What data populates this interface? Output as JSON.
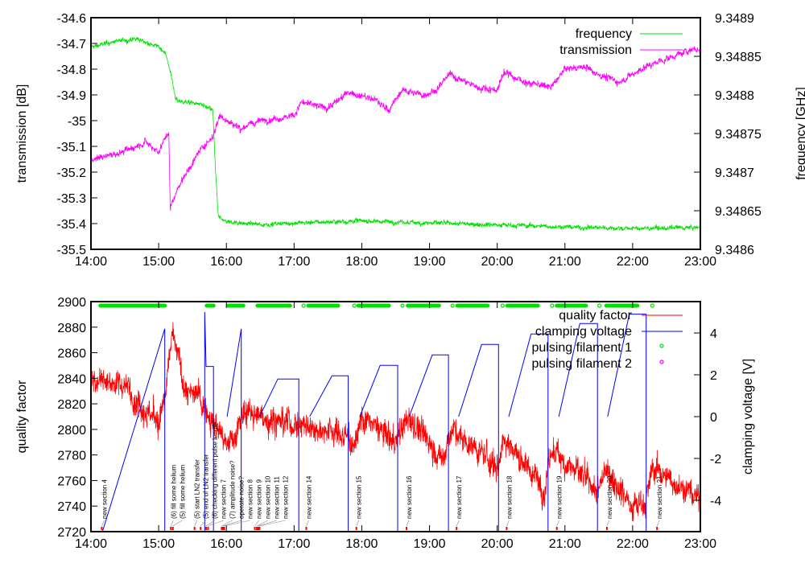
{
  "chart_data": [
    {
      "type": "line",
      "title": "",
      "xlabel": "",
      "ylabel": "transmission [dB]",
      "y2label": "frequency [GHz]",
      "xlim": [
        14,
        23
      ],
      "ylim": [
        -35.5,
        -34.6
      ],
      "y2lim": [
        9.3486,
        9.3489
      ],
      "x_ticks": [
        "14:00",
        "15:00",
        "16:00",
        "17:00",
        "18:00",
        "19:00",
        "20:00",
        "21:00",
        "22:00",
        "23:00"
      ],
      "y_ticks": [
        "-34.6",
        "-34.7",
        "-34.8",
        "-34.9",
        "-35",
        "-35.1",
        "-35.2",
        "-35.3",
        "-35.4",
        "-35.5"
      ],
      "y2_ticks": [
        "9.3489",
        "9.34885",
        "9.3488",
        "9.34875",
        "9.3487",
        "9.34865",
        "9.3486"
      ],
      "legend_position": "top-right",
      "series": [
        {
          "name": "frequency",
          "axis": "y2",
          "color": "#00e000",
          "noise": 4e-06,
          "points": [
            [
              14.0,
              9.348862
            ],
            [
              14.4,
              9.34887
            ],
            [
              14.7,
              9.348872
            ],
            [
              15.0,
              9.348862
            ],
            [
              15.1,
              9.348855
            ],
            [
              15.2,
              9.34882
            ],
            [
              15.25,
              9.348793
            ],
            [
              15.6,
              9.348788
            ],
            [
              15.8,
              9.34878
            ],
            [
              15.84,
              9.3487
            ],
            [
              15.88,
              9.348642
            ],
            [
              16.0,
              9.348636
            ],
            [
              16.5,
              9.348632
            ],
            [
              17.0,
              9.348634
            ],
            [
              18.0,
              9.348637
            ],
            [
              19.0,
              9.348634
            ],
            [
              20.0,
              9.348632
            ],
            [
              21.0,
              9.348629
            ],
            [
              22.0,
              9.348627
            ],
            [
              23.0,
              9.348628
            ]
          ]
        },
        {
          "name": "transmission",
          "axis": "y",
          "color": "#ff00ff",
          "noise": 0.018,
          "points": [
            [
              14.0,
              -35.15
            ],
            [
              14.5,
              -35.12
            ],
            [
              14.8,
              -35.08
            ],
            [
              15.0,
              -35.12
            ],
            [
              15.15,
              -35.04
            ],
            [
              15.17,
              -35.34
            ],
            [
              15.3,
              -35.25
            ],
            [
              15.6,
              -35.12
            ],
            [
              15.8,
              -35.06
            ],
            [
              15.9,
              -34.98
            ],
            [
              16.2,
              -35.03
            ],
            [
              16.5,
              -35.0
            ],
            [
              17.0,
              -34.98
            ],
            [
              17.1,
              -34.93
            ],
            [
              17.5,
              -34.95
            ],
            [
              17.8,
              -34.89
            ],
            [
              18.2,
              -34.92
            ],
            [
              18.4,
              -34.96
            ],
            [
              18.6,
              -34.88
            ],
            [
              18.9,
              -34.9
            ],
            [
              19.1,
              -34.88
            ],
            [
              19.3,
              -34.82
            ],
            [
              19.7,
              -34.87
            ],
            [
              20.0,
              -34.88
            ],
            [
              20.1,
              -34.81
            ],
            [
              20.4,
              -34.85
            ],
            [
              20.8,
              -34.87
            ],
            [
              21.0,
              -34.8
            ],
            [
              21.3,
              -34.79
            ],
            [
              21.5,
              -34.82
            ],
            [
              21.8,
              -34.85
            ],
            [
              22.2,
              -34.79
            ],
            [
              22.5,
              -34.76
            ],
            [
              22.9,
              -34.72
            ],
            [
              23.0,
              -34.73
            ]
          ]
        }
      ]
    },
    {
      "type": "line",
      "title": "",
      "xlabel": "",
      "ylabel": "quality factor",
      "y2label": "clamping voltage [V]",
      "xlim": [
        14,
        23
      ],
      "ylim": [
        2720,
        2900
      ],
      "y2lim": [
        -5.5,
        5.5
      ],
      "x_ticks": [
        "14:00",
        "15:00",
        "16:00",
        "17:00",
        "18:00",
        "19:00",
        "20:00",
        "21:00",
        "22:00",
        "23:00"
      ],
      "y_ticks": [
        "2900",
        "2880",
        "2860",
        "2840",
        "2820",
        "2800",
        "2780",
        "2760",
        "2740",
        "2720"
      ],
      "y2_ticks": [
        "4",
        "2",
        "0",
        "-2",
        "-4"
      ],
      "legend_position": "top-right",
      "quality_factor": {
        "name": "quality factor",
        "color": "#ff0000",
        "noise": 14,
        "points": [
          [
            14.0,
            2840
          ],
          [
            14.5,
            2835
          ],
          [
            15.0,
            2805
          ],
          [
            15.1,
            2825
          ],
          [
            15.2,
            2875
          ],
          [
            15.4,
            2830
          ],
          [
            15.6,
            2825
          ],
          [
            15.9,
            2800
          ],
          [
            16.0,
            2785
          ],
          [
            16.3,
            2815
          ],
          [
            16.5,
            2810
          ],
          [
            17.0,
            2805
          ],
          [
            17.5,
            2800
          ],
          [
            17.9,
            2790
          ],
          [
            18.0,
            2810
          ],
          [
            18.5,
            2790
          ],
          [
            18.7,
            2810
          ],
          [
            19.0,
            2790
          ],
          [
            19.2,
            2775
          ],
          [
            19.3,
            2800
          ],
          [
            19.8,
            2780
          ],
          [
            20.0,
            2770
          ],
          [
            20.1,
            2795
          ],
          [
            20.6,
            2760
          ],
          [
            20.7,
            2752
          ],
          [
            20.8,
            2785
          ],
          [
            21.2,
            2765
          ],
          [
            21.5,
            2750
          ],
          [
            21.6,
            2770
          ],
          [
            22.0,
            2740
          ],
          [
            22.2,
            2745
          ],
          [
            22.3,
            2770
          ],
          [
            23.0,
            2745
          ]
        ]
      },
      "clamping_voltage": {
        "name": "clamping voltage",
        "color": "#0000ff",
        "segments": [
          [
            [
              14.17,
              -5.5
            ],
            [
              15.09,
              4.2
            ],
            [
              15.09,
              -5.5
            ]
          ],
          [
            [
              15.68,
              -5.5
            ],
            [
              15.68,
              5.0
            ],
            [
              15.7,
              2.4
            ],
            [
              15.81,
              2.4
            ],
            [
              15.81,
              -5.5
            ]
          ],
          [
            [
              16.01,
              0
            ],
            [
              16.22,
              4.2
            ],
            [
              16.22,
              -5.5
            ]
          ],
          [
            [
              16.49,
              0
            ],
            [
              16.76,
              1.8
            ],
            [
              17.07,
              1.8
            ],
            [
              17.07,
              -5.5
            ]
          ],
          [
            [
              17.23,
              0
            ],
            [
              17.56,
              1.95
            ],
            [
              17.8,
              1.95
            ],
            [
              17.8,
              -5.5
            ]
          ],
          [
            [
              17.97,
              0
            ],
            [
              18.27,
              2.45
            ],
            [
              18.53,
              2.45
            ],
            [
              18.53,
              -5.5
            ]
          ],
          [
            [
              18.7,
              0
            ],
            [
              19.04,
              2.95
            ],
            [
              19.28,
              2.95
            ],
            [
              19.28,
              -5.5
            ]
          ],
          [
            [
              19.43,
              0
            ],
            [
              19.77,
              3.45
            ],
            [
              20.02,
              3.45
            ],
            [
              20.02,
              -5.5
            ]
          ],
          [
            [
              20.17,
              0
            ],
            [
              20.5,
              3.95
            ],
            [
              20.75,
              3.95
            ],
            [
              20.75,
              -5.5
            ]
          ],
          [
            [
              20.91,
              0
            ],
            [
              21.22,
              4.45
            ],
            [
              21.48,
              4.45
            ],
            [
              21.48,
              -5.5
            ]
          ],
          [
            [
              21.63,
              0
            ],
            [
              21.95,
              4.9
            ],
            [
              22.2,
              4.9
            ],
            [
              22.2,
              -5.5
            ]
          ]
        ]
      },
      "pulsing_filament_1": {
        "name": "pulsing filament 1",
        "color": "#00e000",
        "intervals": [
          [
            14.14,
            15.09
          ],
          [
            15.71,
            15.81
          ],
          [
            16.03,
            16.25
          ],
          [
            16.46,
            16.94
          ],
          [
            17.14,
            17.14
          ],
          [
            17.21,
            17.65
          ],
          [
            17.89,
            17.89
          ],
          [
            17.95,
            18.4
          ],
          [
            18.6,
            18.6
          ],
          [
            18.68,
            19.14
          ],
          [
            19.34,
            19.34
          ],
          [
            19.41,
            19.86
          ],
          [
            20.08,
            20.08
          ],
          [
            20.15,
            20.6
          ],
          [
            20.81,
            20.81
          ],
          [
            20.88,
            21.31
          ],
          [
            21.51,
            21.51
          ],
          [
            21.61,
            22.07
          ],
          [
            22.29,
            22.29
          ]
        ]
      },
      "pulsing_filament_2": {
        "name": "pulsing filament 2",
        "color": "#ff00ff",
        "intervals": []
      },
      "annotations": [
        {
          "time": 14.16,
          "text": "new section 4"
        },
        {
          "time": 15.18,
          "text": "(6) fill some helium"
        },
        {
          "time": 15.21,
          "text": "(5) fill some helium"
        },
        {
          "time": 15.53,
          "text": "(5) start LN2 transfer"
        },
        {
          "time": 15.62,
          "text": "(5) end of LN2 transfer"
        },
        {
          "time": 15.7,
          "text": "(6) checking different pulse length"
        },
        {
          "time": 15.73,
          "text": "new section 7"
        },
        {
          "time": 15.93,
          "text": "(7) amplitude noise?"
        },
        {
          "time": 15.95,
          "text": "operate noise?"
        },
        {
          "time": 15.97,
          "text": "new section 8"
        },
        {
          "time": 16.42,
          "text": "new section 9"
        },
        {
          "time": 16.45,
          "text": "new section 10"
        },
        {
          "time": 16.47,
          "text": "new section 11"
        },
        {
          "time": 16.49,
          "text": "new section 12"
        },
        {
          "time": 17.18,
          "text": "new section 14"
        },
        {
          "time": 17.92,
          "text": "new section 15"
        },
        {
          "time": 18.66,
          "text": "new section 16"
        },
        {
          "time": 19.4,
          "text": "new section 17"
        },
        {
          "time": 20.14,
          "text": "new section 18"
        },
        {
          "time": 20.88,
          "text": "new section 19"
        },
        {
          "time": 21.62,
          "text": "new section 20"
        },
        {
          "time": 22.36,
          "text": "new section 21"
        }
      ]
    }
  ]
}
